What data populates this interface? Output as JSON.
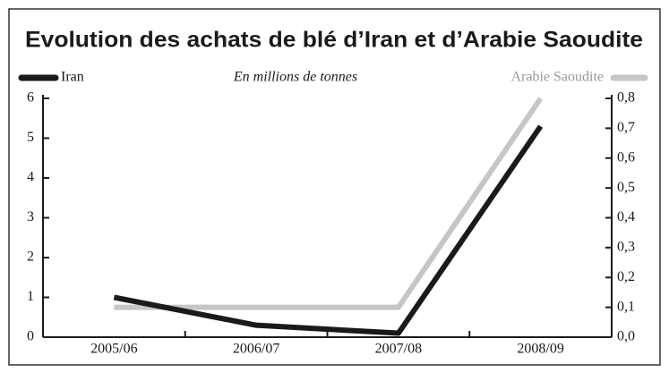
{
  "chart_data": {
    "type": "line",
    "title": "Evolution des achats de blé d’Iran et d’Arabie Saoudite",
    "subtitle": "En millions de tonnes",
    "categories": [
      "2005/06",
      "2006/07",
      "2007/08",
      "2008/09"
    ],
    "series": [
      {
        "name": "Iran",
        "color": "#1a1a1a",
        "values": [
          1.0,
          0.3,
          0.1,
          5.3
        ]
      },
      {
        "name": "Arabie Saoudite",
        "color": "#c6c6c6",
        "axis": "y2",
        "values": [
          0.1,
          0.1,
          0.1,
          0.8
        ]
      }
    ],
    "ylim": [
      0,
      6
    ],
    "yticks": [
      0,
      1,
      2,
      3,
      4,
      5,
      6
    ],
    "y2lim": [
      0,
      0.8
    ],
    "y2ticks": [
      {
        "value": 0,
        "label": "0,0"
      },
      {
        "value": 0.1,
        "label": "0,1"
      },
      {
        "value": 0.2,
        "label": "0,2"
      },
      {
        "value": 0.3,
        "label": "0,3"
      },
      {
        "value": 0.4,
        "label": "0,4"
      },
      {
        "value": 0.5,
        "label": "0,5"
      },
      {
        "value": 0.6,
        "label": "0,6"
      },
      {
        "value": 0.7,
        "label": "0,7"
      },
      {
        "value": 0.8,
        "label": "0,8"
      }
    ]
  }
}
